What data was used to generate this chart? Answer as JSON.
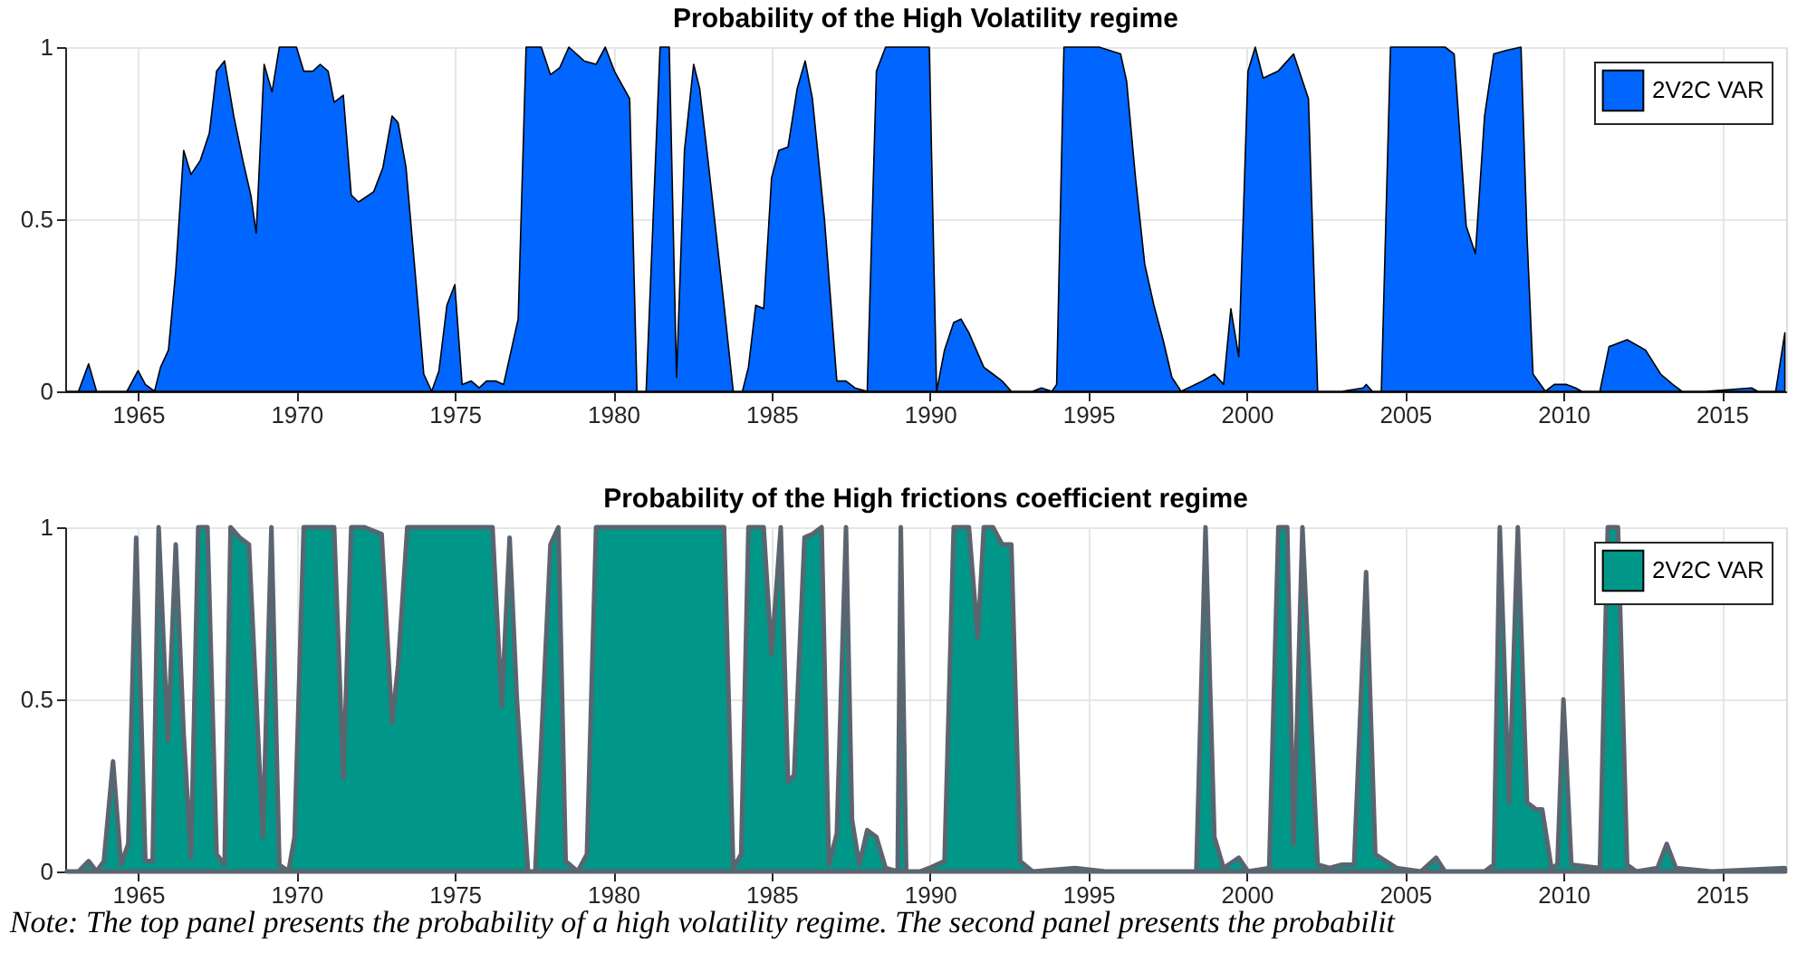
{
  "chart_data": [
    {
      "type": "area",
      "title": "Probability of the High Volatility regime",
      "xlim": [
        1962.7,
        2017.03
      ],
      "xticks": [
        1965,
        1970,
        1975,
        1980,
        1985,
        1990,
        1995,
        2000,
        2005,
        2010,
        2015
      ],
      "ylim": [
        0,
        1
      ],
      "yticks": [
        0,
        0.5,
        1
      ],
      "grid": true,
      "legend": "top right",
      "series": [
        {
          "name": "2V2C VAR",
          "color": "#0066ff",
          "x": [
            1962.75,
            1963.12,
            1963.44,
            1963.69,
            1964.65,
            1965.0,
            1965.23,
            1965.52,
            1965.71,
            1965.96,
            1966.19,
            1966.44,
            1966.67,
            1966.96,
            1967.25,
            1967.48,
            1967.73,
            1968.02,
            1968.31,
            1968.56,
            1968.73,
            1968.98,
            1969.23,
            1969.46,
            1970.0,
            1970.23,
            1970.52,
            1970.75,
            1971.0,
            1971.19,
            1971.48,
            1971.73,
            1971.96,
            1972.44,
            1972.73,
            1973.02,
            1973.21,
            1973.46,
            1973.79,
            1974.02,
            1974.27,
            1974.5,
            1974.75,
            1975.0,
            1975.23,
            1975.52,
            1975.77,
            1976.0,
            1976.29,
            1976.54,
            1977.0,
            1977.25,
            1977.73,
            1978.02,
            1978.31,
            1978.6,
            1979.08,
            1979.46,
            1979.75,
            1980.04,
            1980.52,
            1980.75,
            1981.04,
            1981.48,
            1981.77,
            1982.0,
            1982.25,
            1982.54,
            1982.73,
            1983.02,
            1983.5,
            1983.79,
            1984.08,
            1984.27,
            1984.5,
            1984.75,
            1985.0,
            1985.23,
            1985.52,
            1985.81,
            1986.06,
            1986.29,
            1986.67,
            1987.06,
            1987.35,
            1987.63,
            1988.02,
            1988.31,
            1988.6,
            1989.08,
            1989.98,
            1990.21,
            1990.46,
            1990.75,
            1990.98,
            1991.23,
            1991.7,
            1991.99,
            1992.28,
            1992.57,
            1993.24,
            1993.52,
            1993.85,
            1994.0,
            1994.23,
            1995.34,
            1996.02,
            1996.21,
            1996.49,
            1996.78,
            1997.07,
            1997.36,
            1997.64,
            1997.93,
            1998.6,
            1998.98,
            1999.27,
            1999.5,
            1999.75,
            2000.04,
            2000.27,
            2000.52,
            2000.99,
            2001.48,
            2001.95,
            2002.24,
            2003.01,
            2003.68,
            2003.77,
            2003.97,
            2004.25,
            2004.54,
            2006.26,
            2006.55,
            2006.93,
            2007.22,
            2007.51,
            2007.8,
            2008.18,
            2008.66,
            2008.85,
            2009.04,
            2009.43,
            2009.71,
            2010.1,
            2010.38,
            2010.58,
            2011.15,
            2011.44,
            2012.01,
            2012.59,
            2013.07,
            2013.45,
            2013.74,
            2014.5,
            2015.94,
            2016.13,
            2016.7,
            2016.99
          ],
          "values": [
            0,
            0,
            0.08,
            0,
            0,
            0.06,
            0.02,
            0,
            0.07,
            0.12,
            0.35,
            0.7,
            0.63,
            0.67,
            0.75,
            0.93,
            0.96,
            0.8,
            0.67,
            0.57,
            0.46,
            0.95,
            0.87,
            1.0,
            1.0,
            0.93,
            0.93,
            0.95,
            0.93,
            0.84,
            0.86,
            0.57,
            0.55,
            0.58,
            0.65,
            0.8,
            0.78,
            0.65,
            0.3,
            0.05,
            0,
            0.06,
            0.25,
            0.31,
            0.02,
            0.03,
            0.01,
            0.03,
            0.03,
            0.02,
            0.21,
            1.0,
            1.0,
            0.92,
            0.94,
            1.0,
            0.96,
            0.95,
            1.0,
            0.93,
            0.85,
            0,
            0,
            1.0,
            1.0,
            0.04,
            0.7,
            0.95,
            0.88,
            0.65,
            0.25,
            0,
            0,
            0.07,
            0.25,
            0.24,
            0.62,
            0.7,
            0.71,
            0.88,
            0.96,
            0.85,
            0.5,
            0.03,
            0.03,
            0.01,
            0,
            0.93,
            1.0,
            1.0,
            1.0,
            0,
            0.12,
            0.2,
            0.21,
            0.17,
            0.07,
            0.05,
            0.03,
            0,
            0,
            0.01,
            0,
            0.02,
            1.0,
            1.0,
            0.98,
            0.9,
            0.62,
            0.37,
            0.25,
            0.15,
            0.04,
            0,
            0.03,
            0.05,
            0.02,
            0.24,
            0.1,
            0.93,
            1.0,
            0.91,
            0.93,
            0.98,
            0.85,
            0,
            0,
            0.01,
            0.02,
            0,
            0,
            1.0,
            1.0,
            0.98,
            0.48,
            0.4,
            0.8,
            0.98,
            0.99,
            1.0,
            0.45,
            0.05,
            0,
            0.02,
            0.02,
            0.01,
            0,
            0,
            0.13,
            0.15,
            0.12,
            0.05,
            0.02,
            0,
            0,
            0.01,
            0,
            0,
            0.17
          ]
        }
      ]
    },
    {
      "type": "area",
      "title": "Probability of the High frictions coefficient regime",
      "xlim": [
        1962.7,
        2017.03
      ],
      "xticks": [
        1965,
        1970,
        1975,
        1980,
        1985,
        1990,
        1995,
        2000,
        2005,
        2010,
        2015
      ],
      "ylim": [
        0,
        1
      ],
      "yticks": [
        0,
        0.5,
        1
      ],
      "grid": true,
      "legend": "top right",
      "annotations": [
        "Note: The top panel presents the probability of a high volatility regime. The second panel presents the probabilit"
      ],
      "series": [
        {
          "name": "2V2C VAR",
          "color": "#009688",
          "x": [
            1962.75,
            1963.12,
            1963.44,
            1963.69,
            1963.92,
            1964.21,
            1964.46,
            1964.69,
            1964.94,
            1965.23,
            1965.46,
            1965.65,
            1965.94,
            1966.19,
            1966.44,
            1966.67,
            1966.9,
            1967.19,
            1967.48,
            1967.73,
            1967.92,
            1968.21,
            1968.5,
            1968.94,
            1969.21,
            1969.46,
            1969.75,
            1969.94,
            1970.23,
            1971.19,
            1971.48,
            1971.73,
            1972.15,
            1972.69,
            1973.02,
            1973.21,
            1973.5,
            1976.19,
            1976.48,
            1976.73,
            1976.96,
            1977.31,
            1977.54,
            1978.02,
            1978.27,
            1978.5,
            1978.88,
            1979.17,
            1979.46,
            1983.5,
            1983.79,
            1984.04,
            1984.27,
            1984.75,
            1985.0,
            1985.29,
            1985.52,
            1985.71,
            1986.04,
            1986.29,
            1986.58,
            1986.81,
            1987.06,
            1987.35,
            1987.54,
            1987.77,
            1988.02,
            1988.31,
            1988.6,
            1988.98,
            1989.08,
            1989.25,
            1989.69,
            1989.98,
            1990.46,
            1990.75,
            1991.23,
            1991.51,
            1991.7,
            1991.99,
            1992.28,
            1992.57,
            1992.85,
            1993.24,
            1994.58,
            1995.54,
            1998.41,
            1998.7,
            1998.98,
            1999.27,
            1999.75,
            2000.04,
            2000.71,
            2001.0,
            2001.28,
            2001.48,
            2001.76,
            2002.24,
            2002.62,
            2003.01,
            2003.39,
            2003.77,
            2004.06,
            2004.73,
            2005.5,
            2005.98,
            2006.26,
            2007.51,
            2007.8,
            2007.99,
            2008.28,
            2008.56,
            2008.85,
            2009.14,
            2009.33,
            2009.62,
            2009.81,
            2010.0,
            2010.25,
            2011.15,
            2011.4,
            2011.72,
            2012.01,
            2012.3,
            2012.97,
            2013.26,
            2013.55,
            2014.69,
            2016.99
          ],
          "values": [
            0,
            0,
            0.03,
            0,
            0.03,
            0.32,
            0.02,
            0.08,
            0.97,
            0.03,
            0.03,
            1.0,
            0.38,
            0.95,
            0.4,
            0.04,
            1.0,
            1.0,
            0.05,
            0.02,
            1.0,
            0.97,
            0.95,
            0.1,
            1.0,
            0.02,
            0,
            0.1,
            1.0,
            1.0,
            0.27,
            1.0,
            1.0,
            0.98,
            0.43,
            0.6,
            1.0,
            1.0,
            0.48,
            0.97,
            0.5,
            0,
            0,
            0.95,
            1.0,
            0.03,
            0,
            0.05,
            1.0,
            1.0,
            0.01,
            0.05,
            1.0,
            1.0,
            0.63,
            1.0,
            0.26,
            0.28,
            0.97,
            0.98,
            1.0,
            0.02,
            0.11,
            1.0,
            0.15,
            0.02,
            0.12,
            0.1,
            0.01,
            0,
            1.0,
            0,
            0,
            0.01,
            0.03,
            1.0,
            1.0,
            0.68,
            1.0,
            1.0,
            0.95,
            0.95,
            0.03,
            0,
            0.01,
            0,
            0,
            1.0,
            0.1,
            0.01,
            0.04,
            0,
            0.01,
            1.0,
            1.0,
            0.08,
            1.0,
            0.02,
            0.01,
            0.02,
            0.02,
            0.87,
            0.05,
            0.01,
            0,
            0.04,
            0,
            0,
            0.02,
            1.0,
            0.2,
            1.0,
            0.2,
            0.18,
            0.18,
            0.01,
            0.02,
            0.5,
            0.02,
            0.01,
            1.0,
            1.0,
            0.02,
            0,
            0.01,
            0.08,
            0.01,
            0,
            0.01
          ]
        }
      ]
    }
  ]
}
